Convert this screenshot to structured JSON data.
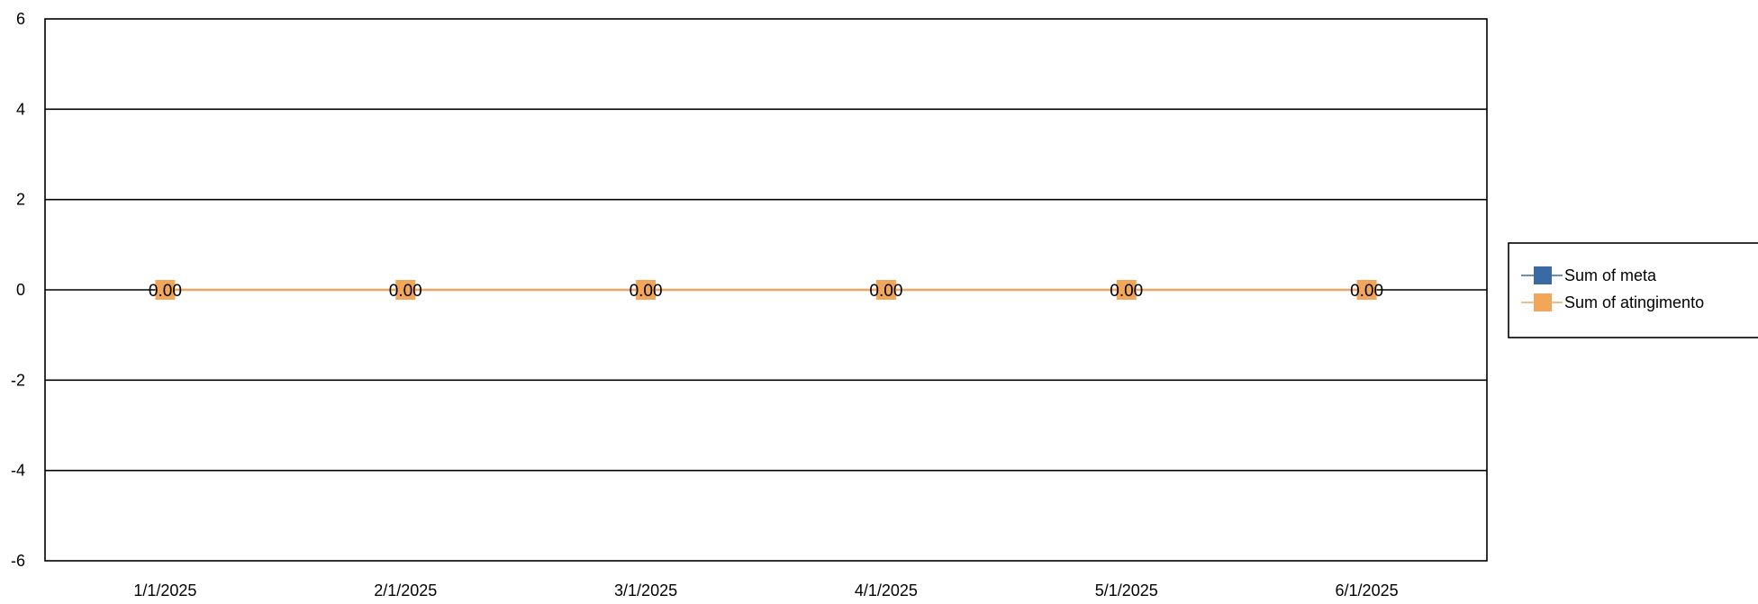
{
  "chart_data": {
    "type": "line",
    "categories": [
      "1/1/2025",
      "2/1/2025",
      "3/1/2025",
      "4/1/2025",
      "5/1/2025",
      "6/1/2025"
    ],
    "series": [
      {
        "name": "Sum of meta",
        "values": [
          0,
          0,
          0,
          0,
          0,
          0
        ],
        "color": "#3a6aa3",
        "show_labels": false
      },
      {
        "name": "Sum of atingimento",
        "values": [
          0,
          0,
          0,
          0,
          0,
          0
        ],
        "color": "#f2a65a",
        "show_labels": true
      }
    ],
    "data_labels": [
      "0.00",
      "0.00",
      "0.00",
      "0.00",
      "0.00",
      "0.00"
    ],
    "y_ticks": [
      "6",
      "4",
      "2",
      "0",
      "-2",
      "-4",
      "-6"
    ],
    "ylim": [
      -6,
      6
    ],
    "y_step": 2,
    "grid": true,
    "legend_position": "right",
    "title": "",
    "xlabel": "",
    "ylabel": ""
  }
}
